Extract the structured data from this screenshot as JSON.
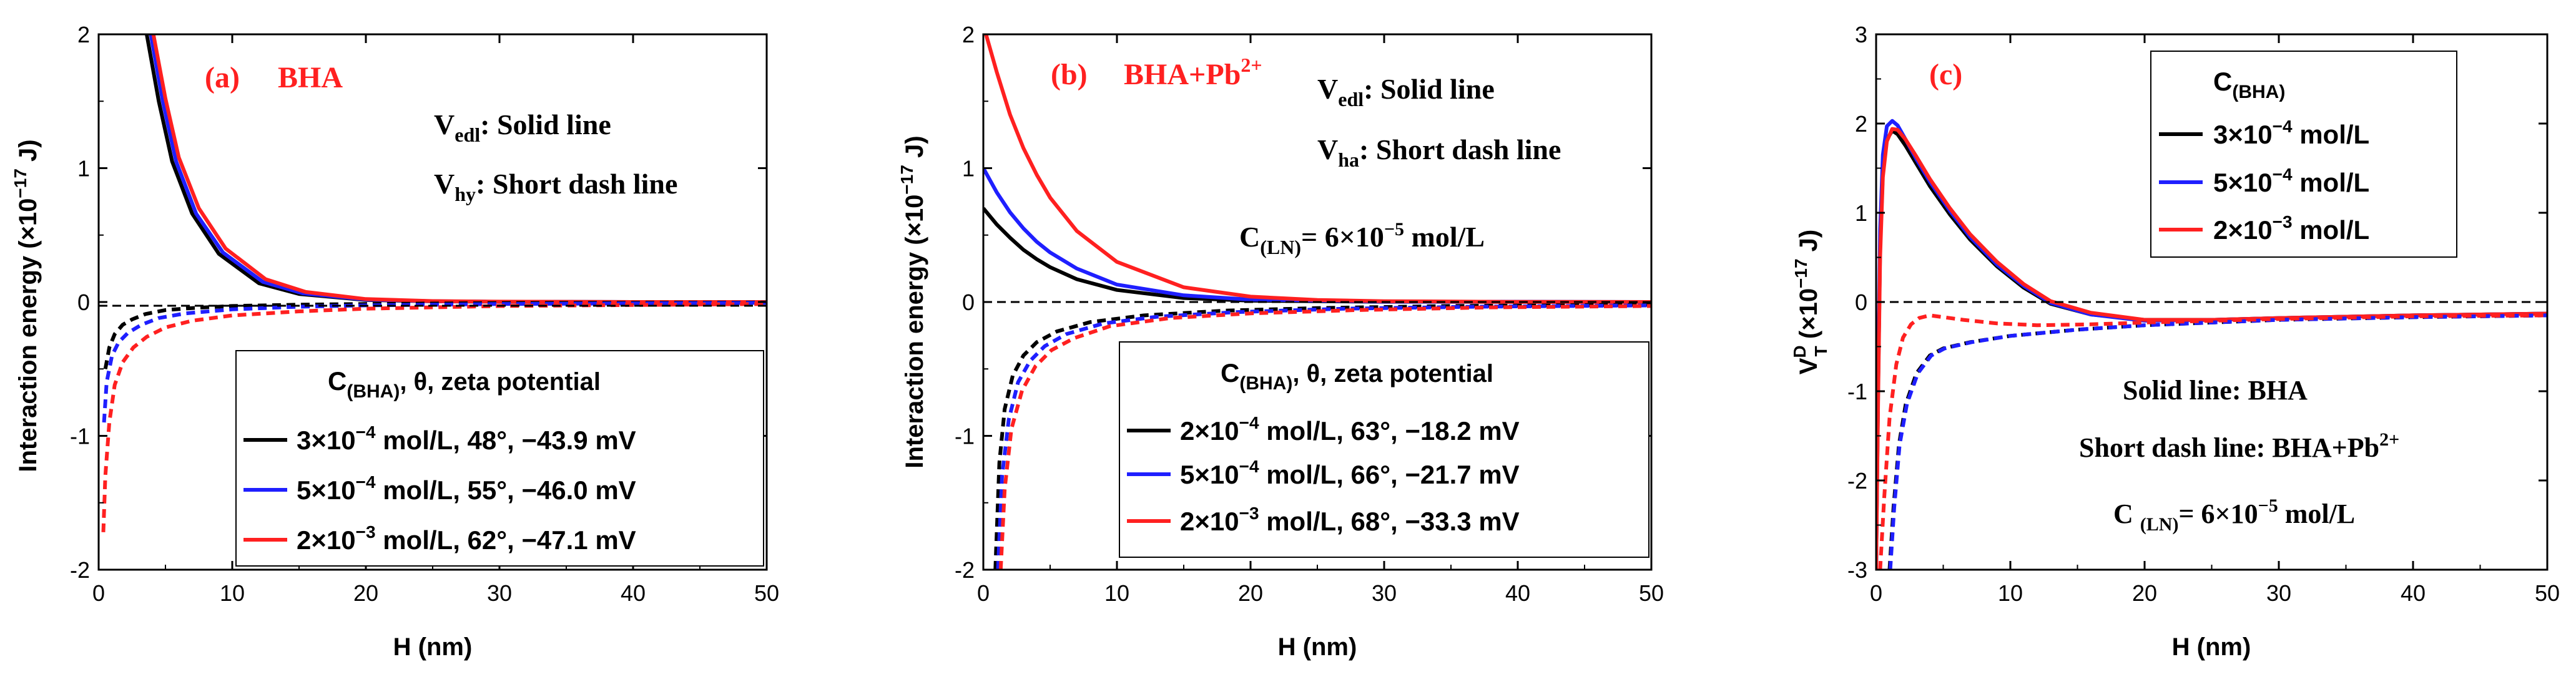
{
  "figure": {
    "colors": {
      "black": "#000000",
      "blue": "#1f1fff",
      "red": "#ff2020"
    }
  },
  "chart_data": [
    {
      "type": "line",
      "panel_label": "(a)",
      "panel_title": "BHA",
      "xlabel": "H (nm)",
      "ylabel": "Interaction energy (×10",
      "ylabel_exp": "−17",
      "ylabel_unit": " J)",
      "xlim": [
        0,
        50
      ],
      "ylim": [
        -2,
        2
      ],
      "xticks": [
        "0",
        "10",
        "20",
        "30",
        "40",
        "50"
      ],
      "yticks": [
        "-2",
        "-1",
        "0",
        "1",
        "2"
      ],
      "xtick_values": [
        0,
        10,
        20,
        30,
        40,
        50
      ],
      "ytick_values": [
        -2,
        -1,
        0,
        1,
        2
      ],
      "annotations": {
        "line1_main": "V",
        "line1_sub": "edl",
        "line1_rest": ": Solid line",
        "line2_main": "V",
        "line2_sub": "hy",
        "line2_rest": ": Short dash line"
      },
      "legend": {
        "header_main": "C",
        "header_sub": "(BHA)",
        "header_rest": ",    θ,  zeta potential",
        "entries": [
          {
            "pre": "3×10",
            "exp": "−4",
            "post": " mol/L, 48°, −43.9 mV",
            "color": "#000000"
          },
          {
            "pre": "5×10",
            "exp": "−4",
            "post": " mol/L, 55°, −46.0 mV",
            "color": "#1f1fff"
          },
          {
            "pre": "2×10",
            "exp": "−3",
            "post": " mol/L, 62°, −47.1 mV",
            "color": "#ff2020"
          }
        ]
      },
      "series": [
        {
          "name": "3×10⁻⁴ mol/L V_edl",
          "style": "solid",
          "color": "#000000",
          "x": [
            3.6,
            4.5,
            5.5,
            7,
            9,
            12,
            15,
            20,
            25,
            30,
            40,
            50
          ],
          "y": [
            2.0,
            1.5,
            1.05,
            0.66,
            0.36,
            0.14,
            0.06,
            0.015,
            0.005,
            0.002,
            0.0,
            0.0
          ]
        },
        {
          "name": "5×10⁻⁴ mol/L V_edl",
          "style": "solid",
          "color": "#1f1fff",
          "x": [
            3.9,
            4.8,
            5.8,
            7.3,
            9.3,
            12.3,
            15.3,
            20,
            25,
            30,
            40,
            50
          ],
          "y": [
            2.0,
            1.5,
            1.05,
            0.66,
            0.37,
            0.15,
            0.065,
            0.018,
            0.006,
            0.002,
            0.0,
            0.0
          ]
        },
        {
          "name": "2×10⁻³ mol/L V_edl",
          "style": "solid",
          "color": "#ff2020",
          "x": [
            4.1,
            5.0,
            6.0,
            7.5,
            9.5,
            12.5,
            15.5,
            20,
            25,
            30,
            40,
            50
          ],
          "y": [
            2.0,
            1.52,
            1.08,
            0.7,
            0.4,
            0.17,
            0.075,
            0.022,
            0.007,
            0.003,
            0.0,
            0.0
          ]
        },
        {
          "name": "3×10⁻⁴ mol/L V_hy",
          "style": "dash",
          "color": "#000000",
          "x": [
            0.5,
            0.8,
            1.2,
            1.8,
            2.5,
            3.5,
            5,
            7,
            10,
            15,
            20,
            30,
            50
          ],
          "y": [
            -0.5,
            -0.34,
            -0.24,
            -0.17,
            -0.13,
            -0.09,
            -0.06,
            -0.045,
            -0.03,
            -0.02,
            -0.015,
            -0.008,
            -0.004
          ]
        },
        {
          "name": "5×10⁻⁴ mol/L V_hy",
          "style": "dash",
          "color": "#1f1fff",
          "x": [
            0.4,
            0.6,
            1.0,
            1.5,
            2.2,
            3.2,
            4.5,
            6.5,
            10,
            15,
            20,
            30,
            50
          ],
          "y": [
            -0.9,
            -0.6,
            -0.4,
            -0.3,
            -0.23,
            -0.17,
            -0.12,
            -0.085,
            -0.055,
            -0.035,
            -0.025,
            -0.015,
            -0.006
          ]
        },
        {
          "name": "2×10⁻³ mol/L V_hy",
          "style": "dash",
          "color": "#ff2020",
          "x": [
            0.35,
            0.5,
            0.8,
            1.2,
            1.8,
            2.6,
            3.6,
            5,
            7,
            10,
            15,
            20,
            30,
            50
          ],
          "y": [
            -1.72,
            -1.3,
            -0.9,
            -0.62,
            -0.45,
            -0.34,
            -0.26,
            -0.19,
            -0.14,
            -0.1,
            -0.07,
            -0.05,
            -0.03,
            -0.015
          ]
        }
      ]
    },
    {
      "type": "line",
      "panel_label": "(b)",
      "panel_title": "BHA+Pb",
      "panel_title_sup": "2+",
      "xlabel": "H (nm)",
      "ylabel": "Interaction energy (×10",
      "ylabel_exp": "−17",
      "ylabel_unit": " J)",
      "xlim": [
        0,
        50
      ],
      "ylim": [
        -2,
        2
      ],
      "xticks": [
        "0",
        "10",
        "20",
        "30",
        "40",
        "50"
      ],
      "yticks": [
        "-2",
        "-1",
        "0",
        "1",
        "2"
      ],
      "xtick_values": [
        0,
        10,
        20,
        30,
        40,
        50
      ],
      "ytick_values": [
        -2,
        -1,
        0,
        1,
        2
      ],
      "annotations": {
        "line1_main": "V",
        "line1_sub": "edl",
        "line1_rest": ": Solid line",
        "line2_main": "V",
        "line2_sub": "ha",
        "line2_rest": ": Short dash line",
        "line3_pre": "C",
        "line3_sub": "(LN)",
        "line3_mid": "= 6×10",
        "line3_exp": "−5",
        "line3_post": " mol/L"
      },
      "legend": {
        "header_main": "C",
        "header_sub": "(BHA)",
        "header_rest": ",    θ,  zeta potential",
        "entries": [
          {
            "pre": "2×10",
            "exp": "−4",
            "post": " mol/L, 63°, −18.2 mV",
            "color": "#000000"
          },
          {
            "pre": "5×10",
            "exp": "−4",
            "post": " mol/L, 66°, −21.7 mV",
            "color": "#1f1fff"
          },
          {
            "pre": "2×10",
            "exp": "−3",
            "post": " mol/L, 68°, −33.3 mV",
            "color": "#ff2020"
          }
        ]
      },
      "series": [
        {
          "name": "2×10⁻⁴ mol/L V_edl",
          "style": "solid",
          "color": "#000000",
          "x": [
            0,
            1,
            2,
            3,
            4,
            5,
            7,
            10,
            15,
            20,
            30,
            50
          ],
          "y": [
            0.7,
            0.58,
            0.48,
            0.39,
            0.32,
            0.26,
            0.17,
            0.09,
            0.03,
            0.01,
            0.002,
            0.0
          ]
        },
        {
          "name": "5×10⁻⁴ mol/L V_edl",
          "style": "solid",
          "color": "#1f1fff",
          "x": [
            0,
            1,
            2,
            3,
            4,
            5,
            7,
            10,
            15,
            20,
            30,
            50
          ],
          "y": [
            1.0,
            0.82,
            0.67,
            0.55,
            0.45,
            0.37,
            0.25,
            0.13,
            0.05,
            0.018,
            0.003,
            0.0
          ]
        },
        {
          "name": "2×10⁻³ mol/L V_edl",
          "style": "solid",
          "color": "#ff2020",
          "x": [
            0.2,
            1,
            2,
            3,
            4,
            5,
            7,
            10,
            15,
            20,
            25,
            30,
            40,
            50
          ],
          "y": [
            2.0,
            1.72,
            1.4,
            1.15,
            0.95,
            0.78,
            0.53,
            0.3,
            0.11,
            0.04,
            0.015,
            0.006,
            0.001,
            0.0
          ]
        },
        {
          "name": "2×10⁻⁴ mol/L V_ha",
          "style": "dash",
          "color": "#000000",
          "x": [
            0.9,
            1.2,
            1.6,
            2.2,
            3,
            4,
            5.5,
            8,
            12,
            18,
            25,
            35,
            50
          ],
          "y": [
            -2.0,
            -1.2,
            -0.8,
            -0.55,
            -0.4,
            -0.3,
            -0.22,
            -0.15,
            -0.1,
            -0.065,
            -0.045,
            -0.03,
            -0.02
          ]
        },
        {
          "name": "5×10⁻⁴ mol/L V_ha",
          "style": "dash",
          "color": "#1f1fff",
          "x": [
            1.1,
            1.4,
            1.9,
            2.6,
            3.5,
            4.6,
            6.2,
            9,
            13,
            19,
            27,
            37,
            50
          ],
          "y": [
            -2.0,
            -1.3,
            -0.88,
            -0.6,
            -0.44,
            -0.33,
            -0.24,
            -0.16,
            -0.11,
            -0.075,
            -0.05,
            -0.035,
            -0.025
          ]
        },
        {
          "name": "2×10⁻³ mol/L V_ha",
          "style": "dash",
          "color": "#ff2020",
          "x": [
            1.3,
            1.6,
            2.1,
            2.9,
            3.9,
            5.1,
            6.8,
            9.5,
            14,
            20,
            28,
            38,
            50
          ],
          "y": [
            -2.0,
            -1.4,
            -0.95,
            -0.66,
            -0.48,
            -0.36,
            -0.27,
            -0.18,
            -0.12,
            -0.085,
            -0.06,
            -0.04,
            -0.03
          ]
        }
      ]
    },
    {
      "type": "line",
      "panel_label": "(c)",
      "xlabel": "H (nm)",
      "ylabel_main": "V",
      "ylabel_sup": "D",
      "ylabel_sub": "T",
      "ylabel_rest": " (×10",
      "ylabel_exp": "−17",
      "ylabel_unit": " J)",
      "xlim": [
        0,
        50
      ],
      "ylim": [
        -3,
        3
      ],
      "xticks": [
        "0",
        "10",
        "20",
        "30",
        "40",
        "50"
      ],
      "yticks": [
        "-3",
        "-2",
        "-1",
        "0",
        "1",
        "2",
        "3"
      ],
      "xtick_values": [
        0,
        10,
        20,
        30,
        40,
        50
      ],
      "ytick_values": [
        -3,
        -2,
        -1,
        0,
        1,
        2,
        3
      ],
      "annotations": {
        "line1": "Solid line: BHA",
        "line2_pre": "Short dash line: BHA+Pb",
        "line2_sup": "2+",
        "line3_pre": "C ",
        "line3_sub": "(LN)",
        "line3_mid": "= 6×10",
        "line3_exp": "−5",
        "line3_post": " mol/L"
      },
      "legend": {
        "header_main": "C",
        "header_sub": "(BHA)",
        "entries": [
          {
            "pre": "3×10",
            "exp": "−4",
            "post": " mol/L",
            "color": "#000000"
          },
          {
            "pre": "5×10",
            "exp": "−4",
            "post": " mol/L",
            "color": "#1f1fff"
          },
          {
            "pre": "2×10",
            "exp": "−3",
            "post": " mol/L",
            "color": "#ff2020"
          }
        ]
      },
      "series": [
        {
          "name": "3×10⁻⁴ mol/L BHA",
          "style": "solid",
          "color": "#000000",
          "x": [
            0,
            0.15,
            0.3,
            0.5,
            0.8,
            1.2,
            1.6,
            2.2,
            3,
            4,
            5.5,
            7,
            9,
            11,
            13,
            16,
            20,
            25,
            30,
            40,
            50
          ],
          "y": [
            -3.0,
            -1.0,
            0.6,
            1.45,
            1.82,
            1.92,
            1.88,
            1.75,
            1.55,
            1.3,
            0.98,
            0.7,
            0.4,
            0.16,
            -0.02,
            -0.14,
            -0.2,
            -0.2,
            -0.18,
            -0.15,
            -0.13
          ]
        },
        {
          "name": "5×10⁻⁴ mol/L BHA",
          "style": "solid",
          "color": "#1f1fff",
          "x": [
            0,
            0.15,
            0.3,
            0.5,
            0.8,
            1.2,
            1.6,
            2.2,
            3,
            4,
            5.5,
            7,
            9,
            11,
            13,
            16,
            20,
            25,
            30,
            40,
            50
          ],
          "y": [
            -3.0,
            -0.9,
            0.8,
            1.65,
            1.97,
            2.03,
            1.98,
            1.82,
            1.6,
            1.35,
            1.02,
            0.73,
            0.42,
            0.18,
            -0.01,
            -0.14,
            -0.21,
            -0.2,
            -0.18,
            -0.15,
            -0.13
          ]
        },
        {
          "name": "2×10⁻³ mol/L BHA",
          "style": "solid",
          "color": "#ff2020",
          "x": [
            0,
            0.15,
            0.3,
            0.5,
            0.8,
            1.2,
            1.6,
            2.2,
            3,
            4,
            5.5,
            7,
            9,
            11,
            13,
            16,
            20,
            25,
            30,
            40,
            50
          ],
          "y": [
            -3.0,
            -1.1,
            0.5,
            1.4,
            1.8,
            1.94,
            1.93,
            1.82,
            1.63,
            1.38,
            1.05,
            0.76,
            0.45,
            0.2,
            0.01,
            -0.12,
            -0.2,
            -0.2,
            -0.18,
            -0.15,
            -0.13
          ]
        },
        {
          "name": "3×10⁻⁴ mol/L BHA+Pb2+",
          "style": "dash",
          "color": "#000000",
          "x": [
            1.0,
            1.3,
            1.7,
            2.2,
            3,
            4,
            5,
            7,
            10,
            15,
            20,
            30,
            40,
            50
          ],
          "y": [
            -3.0,
            -2.3,
            -1.6,
            -1.15,
            -0.8,
            -0.6,
            -0.52,
            -0.45,
            -0.38,
            -0.31,
            -0.26,
            -0.2,
            -0.17,
            -0.15
          ]
        },
        {
          "name": "5×10⁻⁴ mol/L BHA+Pb2+",
          "style": "dash",
          "color": "#1f1fff",
          "x": [
            1.05,
            1.35,
            1.75,
            2.3,
            3.1,
            4.1,
            5.1,
            7.1,
            10,
            15,
            20,
            30,
            40,
            50
          ],
          "y": [
            -3.0,
            -2.3,
            -1.6,
            -1.14,
            -0.8,
            -0.6,
            -0.52,
            -0.45,
            -0.38,
            -0.31,
            -0.26,
            -0.2,
            -0.17,
            -0.15
          ]
        },
        {
          "name": "2×10⁻³ mol/L BHA+Pb2+",
          "style": "dash",
          "color": "#ff2020",
          "x": [
            0.3,
            0.6,
            1.0,
            1.5,
            2.0,
            2.6,
            3.2,
            4,
            5,
            6.5,
            9,
            12,
            16,
            20,
            30,
            40,
            50
          ],
          "y": [
            -3.0,
            -2.2,
            -1.3,
            -0.7,
            -0.4,
            -0.25,
            -0.18,
            -0.15,
            -0.17,
            -0.2,
            -0.24,
            -0.26,
            -0.25,
            -0.23,
            -0.19,
            -0.16,
            -0.15
          ]
        }
      ]
    }
  ]
}
